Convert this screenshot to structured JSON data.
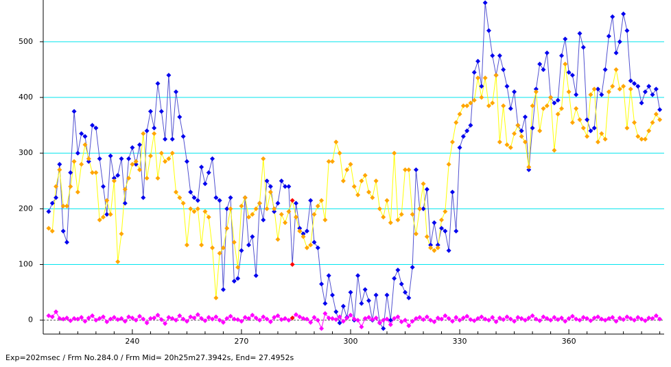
{
  "chart_data": {
    "type": "line",
    "footer": "Exp=202msec / Frm No.284.0 / Frm Mid= 20h25m27.3942s,  End= 27.4952s",
    "x": [
      217,
      218,
      219,
      220,
      221,
      222,
      223,
      224,
      225,
      226,
      227,
      228,
      229,
      230,
      231,
      232,
      233,
      234,
      235,
      236,
      237,
      238,
      239,
      240,
      241,
      242,
      243,
      244,
      245,
      246,
      247,
      248,
      249,
      250,
      251,
      252,
      253,
      254,
      255,
      256,
      257,
      258,
      259,
      260,
      261,
      262,
      263,
      264,
      265,
      266,
      267,
      268,
      269,
      270,
      271,
      272,
      273,
      274,
      275,
      276,
      277,
      278,
      279,
      280,
      281,
      282,
      283,
      284,
      285,
      286,
      287,
      288,
      289,
      290,
      291,
      292,
      293,
      294,
      295,
      296,
      297,
      298,
      299,
      300,
      301,
      302,
      303,
      304,
      305,
      306,
      307,
      308,
      309,
      310,
      311,
      312,
      313,
      314,
      315,
      316,
      317,
      318,
      319,
      320,
      321,
      322,
      323,
      324,
      325,
      326,
      327,
      328,
      329,
      330,
      331,
      332,
      333,
      334,
      335,
      336,
      337,
      338,
      339,
      340,
      341,
      342,
      343,
      344,
      345,
      346,
      347,
      348,
      349,
      350,
      351,
      352,
      353,
      354,
      355,
      356,
      357,
      358,
      359,
      360,
      361,
      362,
      363,
      364,
      365,
      366,
      367,
      368,
      369,
      370,
      371,
      372,
      373,
      374,
      375,
      376,
      377,
      378,
      379,
      380,
      381,
      382,
      383,
      384,
      385
    ],
    "series": [
      {
        "color": "#0000ee",
        "line_color": "#5050d0",
        "values": [
          195,
          210,
          220,
          280,
          160,
          140,
          265,
          375,
          300,
          335,
          330,
          285,
          350,
          345,
          290,
          240,
          190,
          295,
          255,
          260,
          290,
          210,
          290,
          310,
          280,
          315,
          220,
          340,
          375,
          345,
          425,
          375,
          325,
          440,
          325,
          410,
          365,
          330,
          285,
          230,
          220,
          215,
          275,
          245,
          265,
          290,
          220,
          215,
          55,
          200,
          220,
          70,
          75,
          125,
          220,
          135,
          150,
          80,
          210,
          180,
          250,
          240,
          195,
          210,
          250,
          240,
          240,
          100,
          210,
          165,
          155,
          160,
          215,
          140,
          130,
          65,
          30,
          80,
          45,
          15,
          -5,
          25,
          5,
          50,
          0,
          80,
          30,
          55,
          35,
          0,
          45,
          -5,
          -15,
          45,
          0,
          75,
          90,
          65,
          50,
          40,
          95,
          270,
          200,
          200,
          235,
          135,
          175,
          135,
          165,
          160,
          125,
          230,
          160,
          310,
          330,
          340,
          350,
          445,
          465,
          420,
          570,
          520,
          475,
          440,
          475,
          450,
          420,
          380,
          410,
          350,
          340,
          365,
          270,
          345,
          415,
          460,
          450,
          480,
          400,
          390,
          395,
          475,
          505,
          445,
          440,
          405,
          515,
          490,
          360,
          340,
          345,
          415,
          405,
          450,
          510,
          545,
          480,
          500,
          550,
          520,
          430,
          425,
          420,
          390,
          410,
          420,
          405,
          415,
          378
        ]
      },
      {
        "color": "#ffa500",
        "line_color": "#ffff00",
        "values": [
          165,
          160,
          240,
          270,
          205,
          205,
          240,
          285,
          230,
          280,
          315,
          290,
          265,
          265,
          180,
          185,
          215,
          190,
          250,
          105,
          155,
          235,
          255,
          280,
          285,
          270,
          335,
          255,
          295,
          335,
          255,
          300,
          285,
          290,
          300,
          230,
          220,
          210,
          135,
          200,
          195,
          200,
          135,
          195,
          185,
          130,
          40,
          120,
          130,
          165,
          200,
          140,
          95,
          205,
          220,
          185,
          190,
          200,
          210,
          290,
          200,
          230,
          200,
          145,
          190,
          175,
          195,
          215,
          185,
          160,
          150,
          130,
          135,
          190,
          205,
          215,
          180,
          285,
          285,
          320,
          300,
          250,
          270,
          280,
          240,
          225,
          250,
          260,
          230,
          220,
          250,
          200,
          185,
          215,
          175,
          300,
          180,
          190,
          270,
          270,
          190,
          155,
          200,
          245,
          150,
          130,
          125,
          130,
          180,
          195,
          280,
          320,
          355,
          370,
          385,
          385,
          390,
          395,
          435,
          400,
          435,
          385,
          390,
          440,
          320,
          385,
          315,
          310,
          335,
          350,
          330,
          320,
          275,
          385,
          410,
          340,
          380,
          385,
          400,
          305,
          370,
          380,
          460,
          410,
          355,
          380,
          360,
          345,
          330,
          405,
          415,
          320,
          335,
          325,
          410,
          420,
          450,
          415,
          420,
          345,
          415,
          355,
          330,
          325,
          325,
          340,
          355,
          370,
          360
        ]
      },
      {
        "color": "#ff00ff",
        "line_color": "#ff00ff",
        "values": [
          8,
          6,
          15,
          3,
          2,
          4,
          -1,
          3,
          2,
          5,
          -2,
          4,
          8,
          0,
          3,
          6,
          -3,
          2,
          5,
          1,
          3,
          -2,
          6,
          4,
          0,
          7,
          2,
          -5,
          3,
          4,
          9,
          1,
          -6,
          5,
          3,
          0,
          8,
          2,
          -2,
          6,
          4,
          10,
          3,
          -1,
          5,
          2,
          6,
          0,
          -4,
          3,
          7,
          2,
          1,
          -2,
          5,
          3,
          9,
          4,
          0,
          6,
          2,
          -3,
          5,
          8,
          1,
          3,
          0,
          4,
          10,
          6,
          3,
          2,
          -4,
          5,
          0,
          -15,
          12,
          4,
          3,
          1,
          6,
          -2,
          4,
          9,
          2,
          0,
          -12,
          3,
          5,
          1,
          4,
          -5,
          0,
          2,
          -8,
          3,
          6,
          -3,
          0,
          -10,
          -2,
          3,
          5,
          1,
          6,
          0,
          -3,
          4,
          2,
          8,
          3,
          -2,
          5,
          0,
          4,
          7,
          1,
          -1,
          3,
          6,
          2,
          0,
          5,
          -3,
          4,
          1,
          6,
          2,
          -2,
          5,
          3,
          0,
          4,
          8,
          2,
          -1,
          6,
          3,
          0,
          5,
          1,
          4,
          -2,
          3,
          7,
          2,
          0,
          5,
          3,
          -1,
          4,
          6,
          2,
          0,
          3,
          5,
          -2,
          4,
          1,
          6,
          3,
          0,
          5,
          2,
          -1,
          4,
          3,
          8,
          2
        ]
      }
    ],
    "highlight_x": 284,
    "highlight_color": "#ff0000",
    "xlim": [
      215.5,
      386.2
    ],
    "ylim": [
      -25,
      575
    ],
    "xticks": [
      240,
      270,
      300,
      330,
      360
    ],
    "xminorticks": [
      220,
      225,
      230,
      235,
      245,
      250,
      255,
      260,
      265,
      275,
      280,
      285,
      290,
      295,
      305,
      310,
      315,
      320,
      325,
      335,
      340,
      345,
      350,
      355,
      365,
      370,
      375,
      380,
      385
    ],
    "yticks": [
      0,
      100,
      200,
      300,
      400,
      500
    ],
    "grid": true,
    "grid_color": "#00e5ee"
  }
}
